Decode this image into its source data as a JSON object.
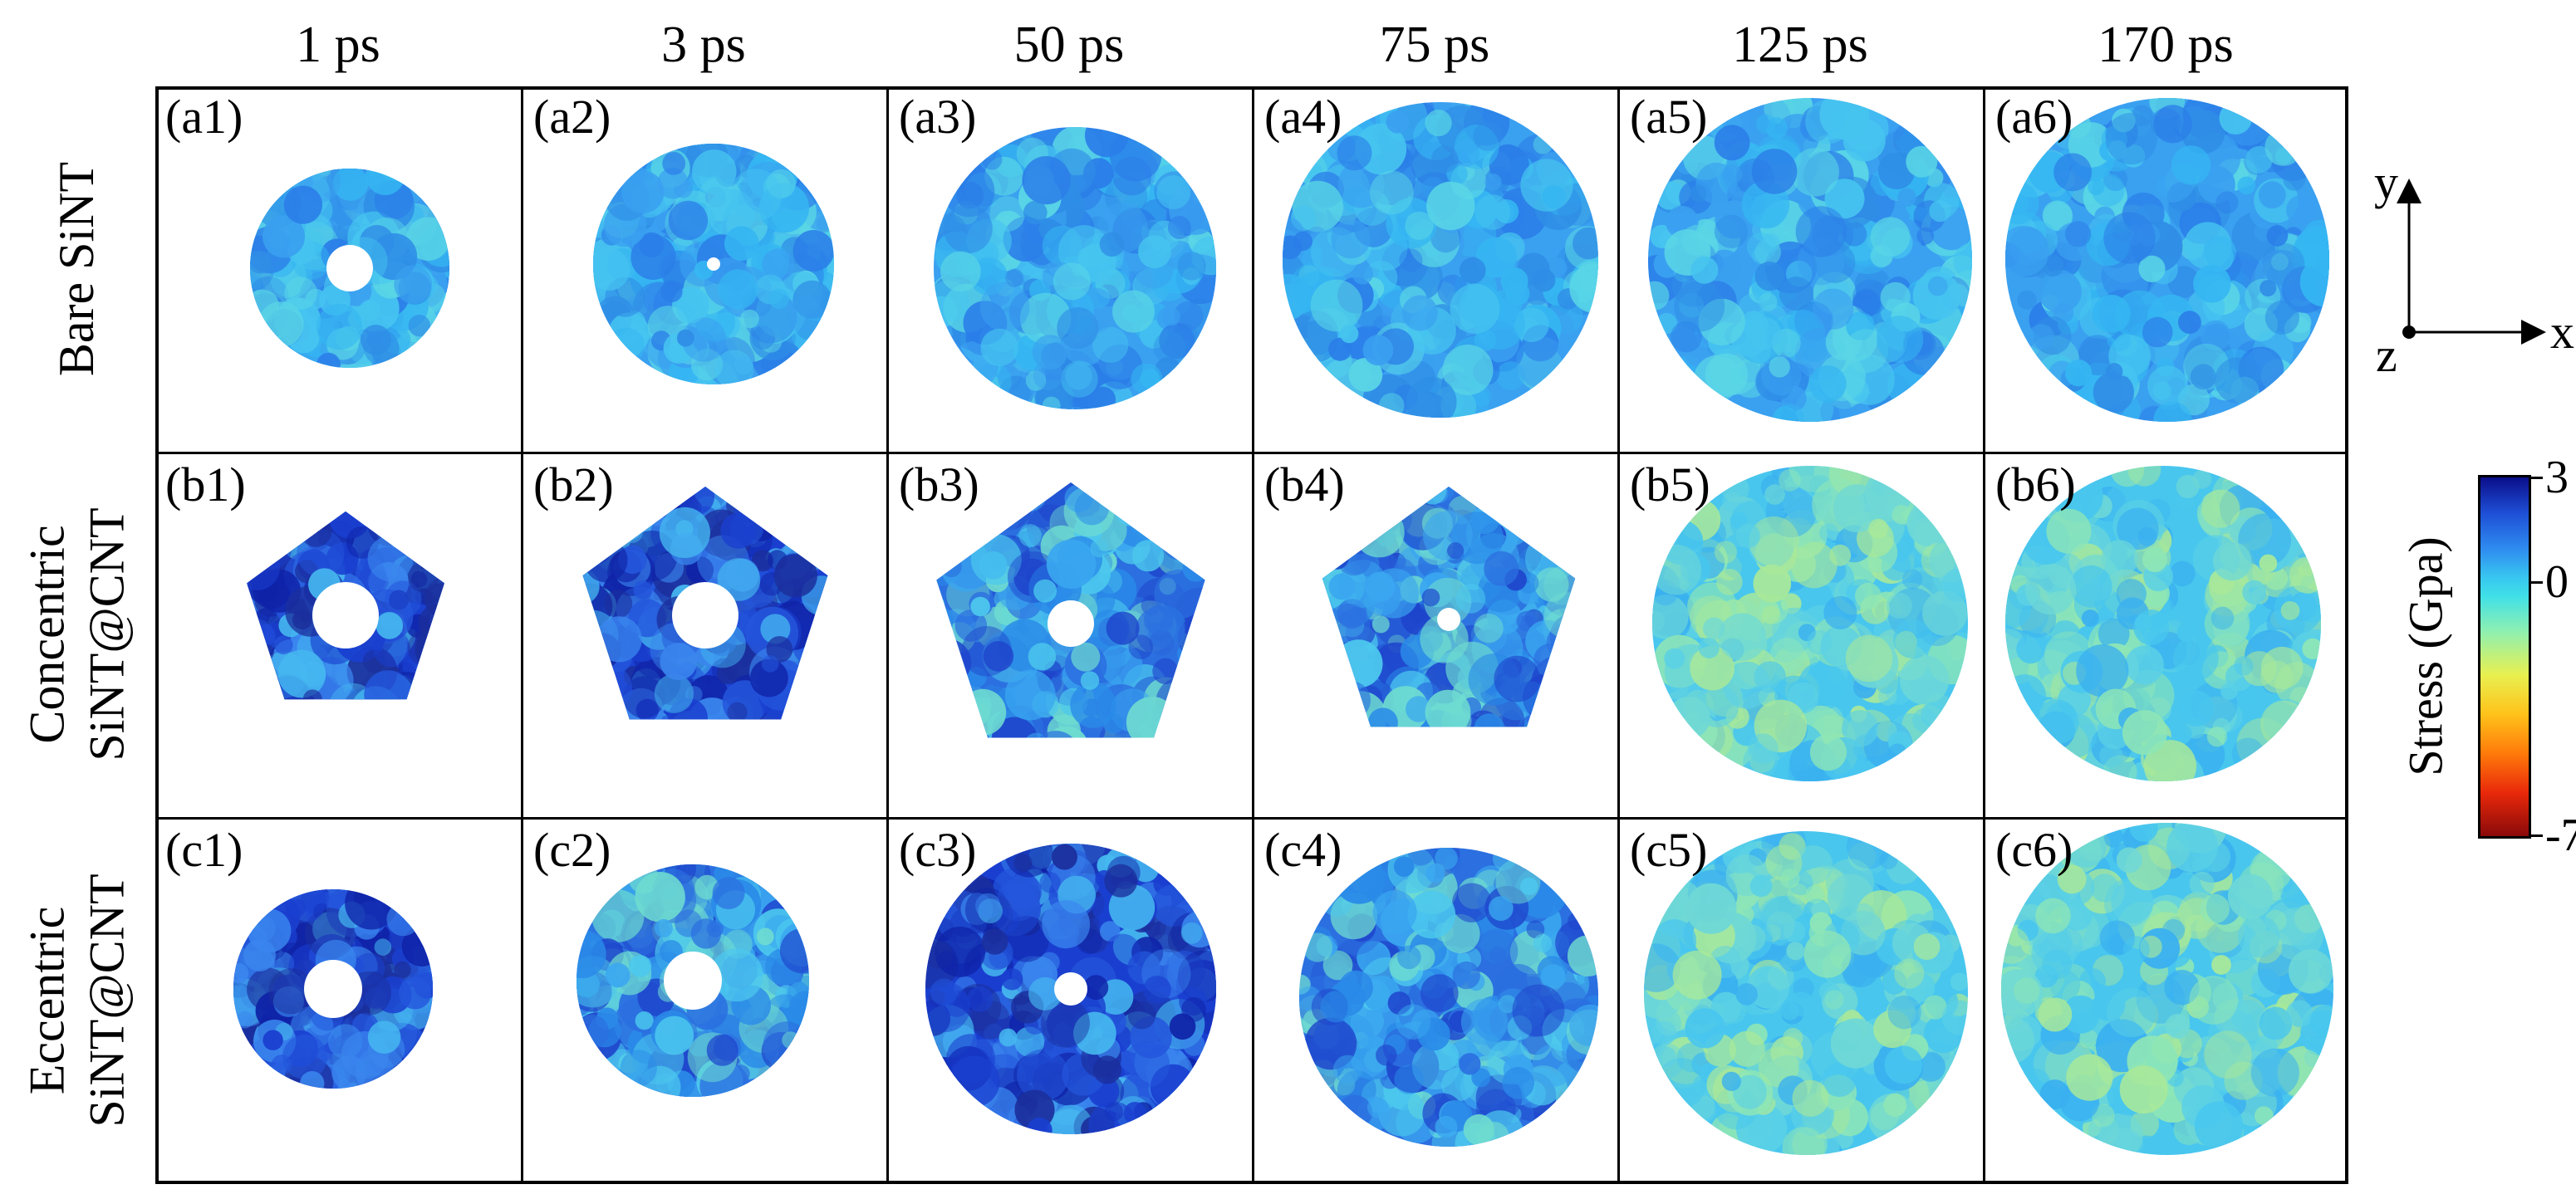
{
  "columns": [
    "1 ps",
    "3 ps",
    "50 ps",
    "75 ps",
    "125 ps",
    "170 ps"
  ],
  "rows": [
    {
      "lines": [
        "Bare SiNT"
      ]
    },
    {
      "lines": [
        "Concentric",
        "SiNT@CNT"
      ]
    },
    {
      "lines": [
        "Eccentric",
        "SiNT@CNT"
      ]
    }
  ],
  "panel_labels": [
    [
      "(a1)",
      "(a2)",
      "(a3)",
      "(a4)",
      "(a5)",
      "(a6)"
    ],
    [
      "(b1)",
      "(b2)",
      "(b3)",
      "(b4)",
      "(b5)",
      "(b6)"
    ],
    [
      "(c1)",
      "(c2)",
      "(c3)",
      "(c4)",
      "(c5)",
      "(c6)"
    ]
  ],
  "axes": {
    "y": "y",
    "x": "x",
    "z": "z"
  },
  "colorbar": {
    "title": "Stress (Gpa)",
    "max": "3",
    "mid": "0",
    "min": "-7",
    "colors": [
      "#0b0e8a",
      "#2f8cf0",
      "#3fe0e8",
      "#e8f050",
      "#ff7a0a",
      "#8a0a0a"
    ]
  }
}
